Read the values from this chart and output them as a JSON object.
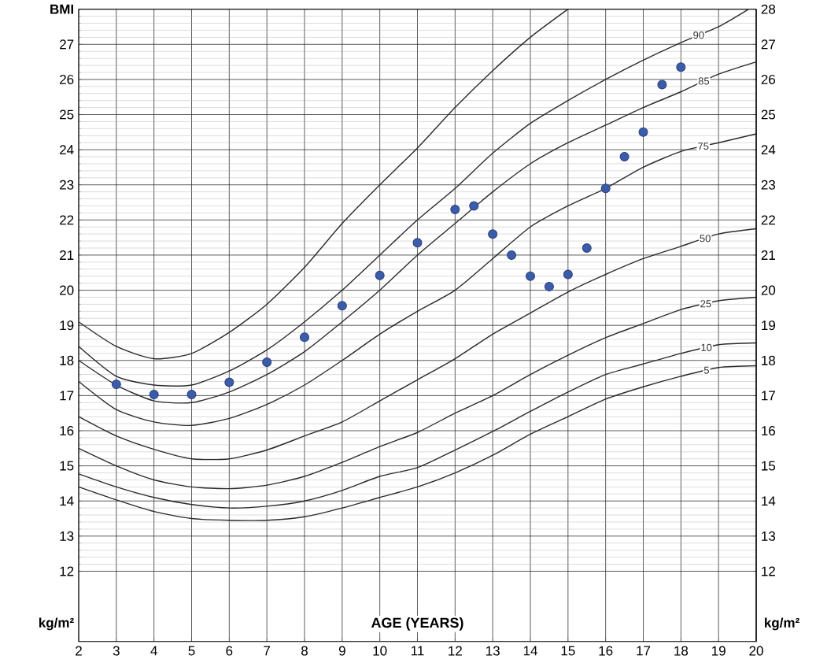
{
  "chart_data": {
    "type": "line",
    "xlabel": "AGE (YEARS)",
    "annotations": [
      "kg/m²",
      "kg/m²"
    ],
    "xlim": [
      2,
      20
    ],
    "ylim": [
      10,
      28
    ],
    "y2lim": [
      10,
      28
    ],
    "xticks": [
      2,
      3,
      4,
      5,
      6,
      7,
      8,
      9,
      10,
      11,
      12,
      13,
      14,
      15,
      16,
      17,
      18,
      19,
      20
    ],
    "yticks": [
      12,
      13,
      14,
      15,
      16,
      17,
      18,
      19,
      20,
      21,
      22,
      23,
      24,
      25,
      26,
      27,
      {
        "value": 28,
        "label": "BMI"
      }
    ],
    "y2ticks": [
      12,
      13,
      14,
      15,
      16,
      17,
      18,
      19,
      20,
      21,
      22,
      23,
      24,
      25,
      26,
      27,
      28
    ],
    "grid": true,
    "marker": "none",
    "line_style": "solid",
    "series": [
      {
        "color": "#2b2b2b",
        "x": [
          2,
          3,
          4,
          5,
          6,
          7,
          8,
          9,
          10,
          11,
          12,
          13,
          14,
          15
        ],
        "values": [
          19.1,
          18.4,
          18.05,
          18.2,
          18.8,
          19.6,
          20.65,
          21.9,
          23.0,
          24.05,
          25.2,
          26.25,
          27.2,
          28.0
        ]
      },
      {
        "name": "90",
        "color": "#2b2b2b",
        "x": [
          2,
          3,
          4,
          5,
          6,
          7,
          8,
          9,
          10,
          11,
          12,
          13,
          14,
          15,
          16,
          17,
          18,
          19,
          19.8
        ],
        "values": [
          18.4,
          17.55,
          17.3,
          17.3,
          17.7,
          18.3,
          19.1,
          20.0,
          21.0,
          22.0,
          22.9,
          23.9,
          24.75,
          25.4,
          26.0,
          26.55,
          27.05,
          27.5,
          28.0
        ]
      },
      {
        "name": "85",
        "color": "#2b2b2b",
        "x": [
          2,
          3,
          4,
          5,
          6,
          7,
          8,
          9,
          10,
          11,
          12,
          13,
          14,
          15,
          16,
          17,
          18,
          19,
          20
        ],
        "values": [
          18.0,
          17.3,
          16.85,
          16.8,
          17.1,
          17.6,
          18.25,
          19.1,
          20.0,
          21.0,
          21.9,
          22.8,
          23.6,
          24.2,
          24.7,
          25.2,
          25.65,
          26.15,
          26.5
        ]
      },
      {
        "name": "75",
        "color": "#2b2b2b",
        "x": [
          2,
          3,
          4,
          5,
          6,
          7,
          8,
          9,
          10,
          11,
          12,
          13,
          14,
          15,
          16,
          17,
          18,
          19,
          20
        ],
        "values": [
          17.4,
          16.6,
          16.25,
          16.15,
          16.35,
          16.75,
          17.3,
          18.0,
          18.75,
          19.4,
          20.0,
          20.9,
          21.8,
          22.4,
          22.9,
          23.5,
          23.95,
          24.2,
          24.45
        ]
      },
      {
        "name": "50",
        "color": "#2b2b2b",
        "x": [
          2,
          3,
          4,
          5,
          6,
          7,
          8,
          9,
          10,
          11,
          12,
          13,
          14,
          15,
          16,
          17,
          18,
          19,
          20
        ],
        "values": [
          16.4,
          15.85,
          15.47,
          15.2,
          15.2,
          15.45,
          15.85,
          16.25,
          16.85,
          17.45,
          18.05,
          18.75,
          19.35,
          19.95,
          20.45,
          20.9,
          21.25,
          21.6,
          21.75
        ]
      },
      {
        "name": "25",
        "color": "#2b2b2b",
        "x": [
          2,
          3,
          4,
          5,
          6,
          7,
          8,
          9,
          10,
          11,
          12,
          13,
          14,
          15,
          16,
          17,
          18,
          19,
          20
        ],
        "values": [
          15.5,
          15.0,
          14.6,
          14.4,
          14.35,
          14.45,
          14.7,
          15.1,
          15.55,
          15.95,
          16.5,
          17.0,
          17.6,
          18.15,
          18.65,
          19.05,
          19.45,
          19.7,
          19.8
        ]
      },
      {
        "name": "10",
        "color": "#2b2b2b",
        "x": [
          2,
          3,
          4,
          5,
          6,
          7,
          8,
          9,
          10,
          11,
          12,
          13,
          14,
          15,
          16,
          17,
          18,
          19,
          20
        ],
        "values": [
          14.77,
          14.4,
          14.1,
          13.9,
          13.8,
          13.85,
          14.0,
          14.3,
          14.7,
          14.95,
          15.45,
          15.98,
          16.55,
          17.1,
          17.6,
          17.9,
          18.2,
          18.45,
          18.5
        ]
      },
      {
        "name": "5",
        "color": "#2b2b2b",
        "x": [
          2,
          3,
          4,
          5,
          6,
          7,
          8,
          9,
          10,
          11,
          12,
          13,
          14,
          15,
          16,
          17,
          18,
          19,
          20
        ],
        "values": [
          14.4,
          14.03,
          13.7,
          13.5,
          13.45,
          13.45,
          13.55,
          13.8,
          14.1,
          14.4,
          14.8,
          15.3,
          15.9,
          16.4,
          16.9,
          17.25,
          17.55,
          17.8,
          17.85
        ]
      },
      {
        "type": "scatter",
        "marker": "circle",
        "color": "#3b5cab",
        "x": [
          3,
          4,
          5,
          6,
          7,
          8,
          9,
          10,
          11,
          12,
          12.5,
          13,
          13.5,
          14,
          14.5,
          15,
          15.5,
          16,
          16.5,
          17,
          17.5,
          18
        ],
        "values": [
          17.32,
          17.03,
          17.03,
          17.38,
          17.95,
          18.66,
          19.56,
          20.42,
          21.35,
          22.3,
          22.4,
          21.6,
          21.0,
          20.4,
          20.1,
          20.45,
          21.2,
          22.9,
          23.8,
          24.5,
          25.85,
          26.35
        ]
      }
    ]
  }
}
